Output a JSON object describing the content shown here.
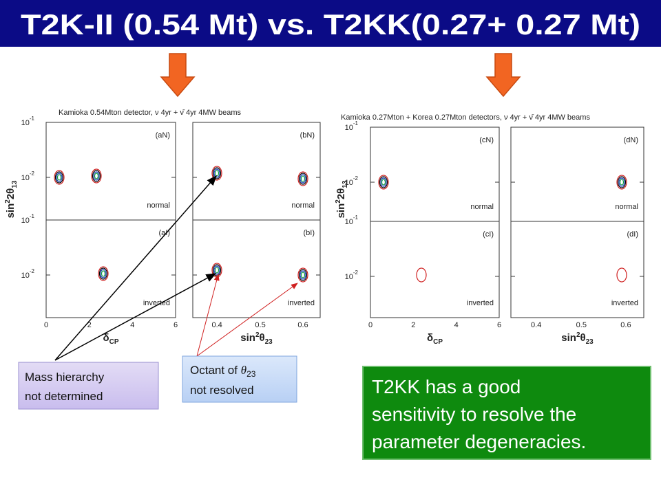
{
  "title": "T2K-II (0.54 Mt)  vs. T2KK(0.27+ 0.27 Mt)",
  "figures": [
    {
      "header": "Kamioka 0.54Mton detector, ν 4yr + ν̄ 4yr 4MW beams",
      "panels": [
        {
          "label": "(aN)",
          "note": "normal"
        },
        {
          "label": "(bN)",
          "note": "normal"
        },
        {
          "label": "(aI)",
          "note": "inverted"
        },
        {
          "label": "(bI)",
          "note": "inverted"
        }
      ],
      "y_ticks": [
        {
          "base": "10",
          "exp": "-1"
        },
        {
          "base": "10",
          "exp": "-2"
        }
      ],
      "x_ticks_left": [
        "0",
        "2",
        "4",
        "6"
      ],
      "x_ticks_right": [
        "0.4",
        "0.5",
        "0.6"
      ],
      "x_label_left": {
        "main": "δ",
        "sub": "CP"
      },
      "x_label_right": {
        "main": "sin",
        "sup": "2",
        "main2": "θ",
        "sub": "23"
      },
      "y_label": {
        "main": "sin",
        "sup": "2",
        "main2": "2θ",
        "sub": "13"
      }
    },
    {
      "header": "Kamioka 0.27Mton + Korea 0.27Mton detectors, ν 4yr + ν̄ 4yr 4MW beams",
      "panels": [
        {
          "label": "(cN)",
          "note": "normal"
        },
        {
          "label": "(dN)",
          "note": "normal"
        },
        {
          "label": "(cI)",
          "note": "inverted"
        },
        {
          "label": "(dI)",
          "note": "inverted"
        }
      ],
      "y_ticks": [
        {
          "base": "10",
          "exp": "-1"
        },
        {
          "base": "10",
          "exp": "-2"
        }
      ],
      "x_ticks_left": [
        "0",
        "2",
        "4",
        "6"
      ],
      "x_ticks_right": [
        "0.4",
        "0.5",
        "0.6"
      ],
      "x_label_left": {
        "main": "δ",
        "sub": "CP"
      },
      "x_label_right": {
        "main": "sin",
        "sup": "2",
        "main2": "θ",
        "sub": "23"
      },
      "y_label": {
        "main": "sin",
        "sup": "2",
        "main2": "2θ",
        "sub": "13"
      }
    }
  ],
  "annotations": {
    "mass_hierarchy": {
      "line1": "Mass hierarchy",
      "line2": "not  determined"
    },
    "octant": {
      "text": "Octant of ",
      "symbol": "θ",
      "sub": "23",
      "line2": "not  resolved"
    },
    "conclusion": {
      "lines": [
        "T2KK has a good",
        "sensitivity to resolve the",
        "parameter degeneracies."
      ]
    }
  }
}
